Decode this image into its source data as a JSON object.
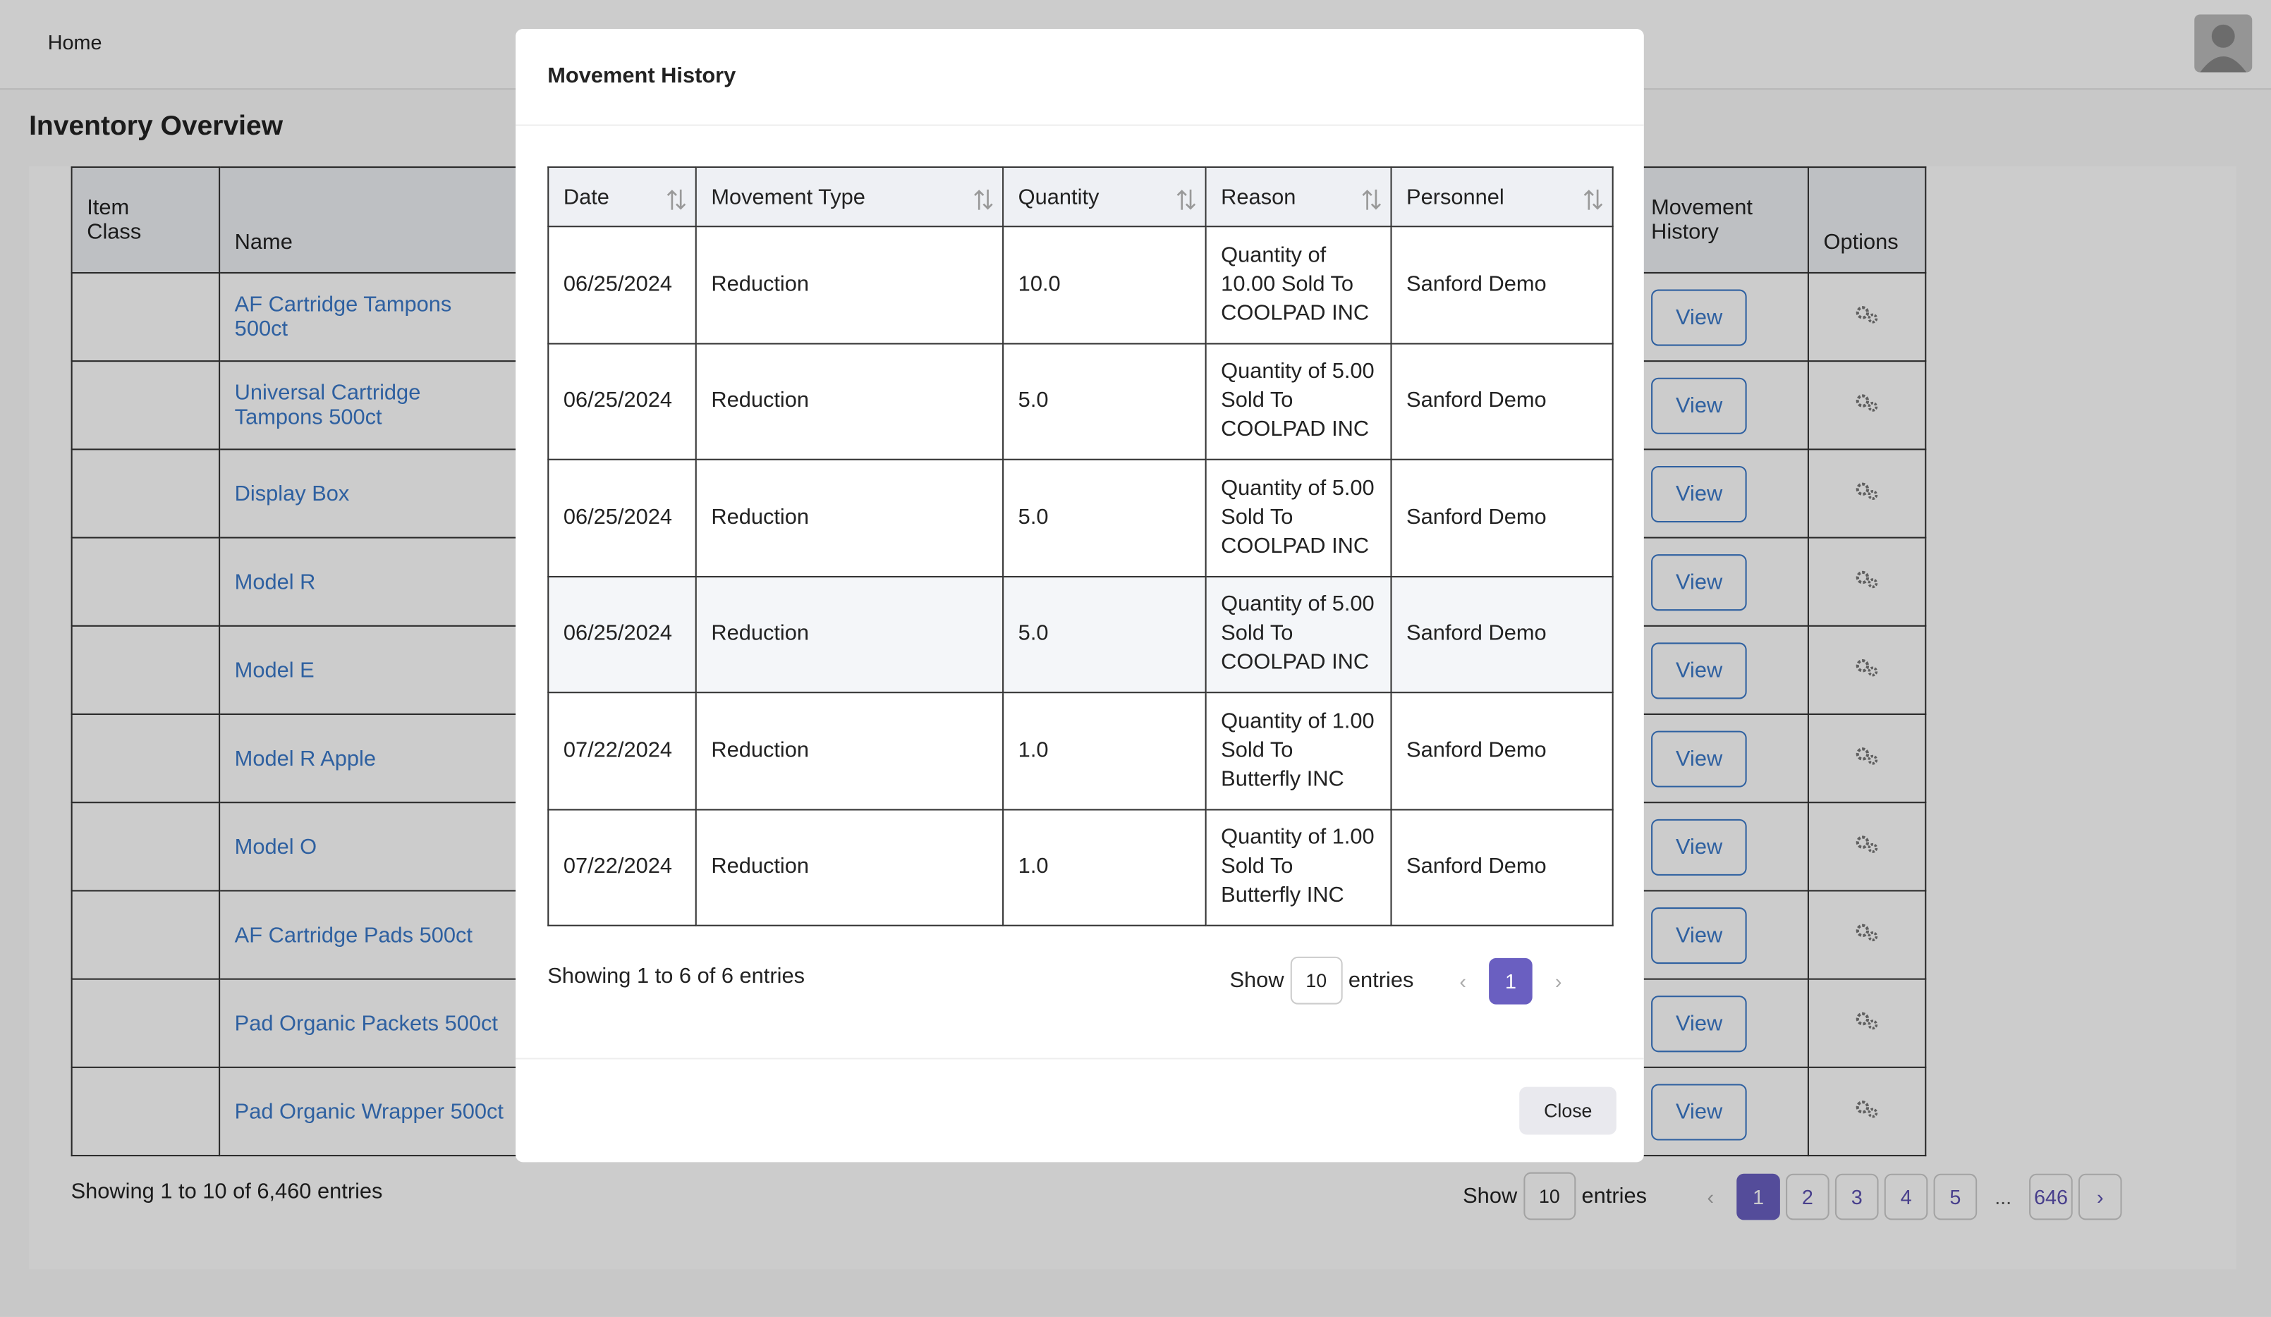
{
  "nav": {
    "home": "Home"
  },
  "page": {
    "title": "Inventory Overview"
  },
  "inventory_table": {
    "headers": {
      "item_class": "Item Class",
      "name": "Name",
      "movement_history": "Movement History",
      "options": "Options"
    },
    "rows": [
      {
        "name": "AF Cartridge Tampons 500ct",
        "action": "View"
      },
      {
        "name": "Universal Cartridge Tampons 500ct",
        "action": "View"
      },
      {
        "name": "Display Box",
        "action": "View"
      },
      {
        "name": "Model R",
        "action": "View"
      },
      {
        "name": "Model E",
        "action": "View"
      },
      {
        "name": "Model R Apple",
        "action": "View"
      },
      {
        "name": "Model O",
        "action": "View"
      },
      {
        "name": "AF Cartridge Pads 500ct",
        "action": "View"
      },
      {
        "name": "Pad Organic Packets 500ct",
        "action": "View"
      },
      {
        "name": "Pad Organic Wrapper 500ct",
        "action": "View"
      }
    ],
    "footer": {
      "info": "Showing 1 to 10 of 6,460 entries",
      "show": "Show",
      "page_size": "10",
      "entries": "entries",
      "pages": [
        "1",
        "2",
        "3",
        "4",
        "5",
        "...",
        "646"
      ]
    }
  },
  "modal": {
    "title": "Movement History",
    "headers": [
      "Date",
      "Movement Type",
      "Quantity",
      "Reason",
      "Personnel"
    ],
    "rows": [
      [
        "06/25/2024",
        "Reduction",
        "10.0",
        "Quantity of 10.00 Sold To COOLPAD INC",
        "Sanford Demo"
      ],
      [
        "06/25/2024",
        "Reduction",
        "5.0",
        "Quantity of 5.00 Sold To COOLPAD INC",
        "Sanford Demo"
      ],
      [
        "06/25/2024",
        "Reduction",
        "5.0",
        "Quantity of 5.00 Sold To COOLPAD INC",
        "Sanford Demo"
      ],
      [
        "06/25/2024",
        "Reduction",
        "5.0",
        "Quantity of 5.00 Sold To COOLPAD INC",
        "Sanford Demo"
      ],
      [
        "07/22/2024",
        "Reduction",
        "1.0",
        "Quantity of 1.00 Sold To Butterfly INC",
        "Sanford Demo"
      ],
      [
        "07/22/2024",
        "Reduction",
        "1.0",
        "Quantity of 1.00 Sold To Butterfly INC",
        "Sanford Demo"
      ]
    ],
    "footer": {
      "info": "Showing 1 to 6 of 6 entries",
      "show": "Show",
      "page_size": "10",
      "entries": "entries",
      "pages": [
        "1"
      ]
    },
    "close": "Close"
  }
}
